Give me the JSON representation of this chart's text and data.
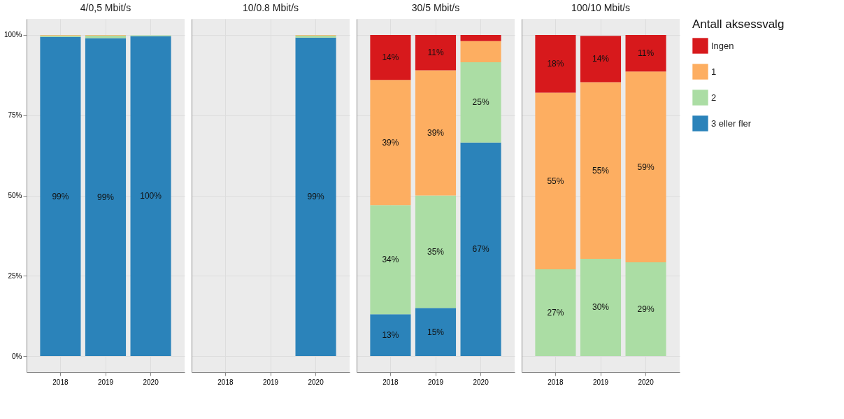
{
  "chart_data": [
    {
      "type": "bar",
      "title": "4/0,5 Mbit/s",
      "stacked": true,
      "legend": "right",
      "legend_title": "Antall aksessvalg",
      "categories": [
        "2018",
        "2019",
        "2020"
      ],
      "ylim": [
        -5,
        105
      ],
      "yticks": [
        {
          "value": 0,
          "label": "0%"
        },
        {
          "value": 25,
          "label": "25%"
        },
        {
          "value": 50,
          "label": "50%"
        },
        {
          "value": 75,
          "label": "75%"
        },
        {
          "value": 100,
          "label": "100%"
        }
      ],
      "grid": true,
      "series": [
        {
          "name": "3 eller fler",
          "color": "#2b83ba",
          "values": [
            99.4,
            99.0,
            99.6
          ],
          "value_labels": [
            "99%",
            "99%",
            "100%"
          ]
        },
        {
          "name": "2",
          "color": "#abdda4",
          "values": [
            0.4,
            0.8,
            0.3
          ]
        },
        {
          "name": "1",
          "color": "#fdae61",
          "values": [
            0.2,
            0.2,
            null
          ]
        },
        {
          "name": "Ingen",
          "color": "#d7191c",
          "values": [
            null,
            null,
            null
          ]
        }
      ]
    },
    {
      "type": "bar",
      "title": "10/0.8 Mbit/s",
      "stacked": true,
      "categories": [
        "2018",
        "2019",
        "2020"
      ],
      "ylim": [
        -5,
        105
      ],
      "yticks": [
        0,
        25,
        50,
        75,
        100
      ],
      "grid": true,
      "tick_labels": "x",
      "series": [
        {
          "color": "#2b83ba",
          "values": [
            null,
            null,
            99.2
          ],
          "value_labels": [
            null,
            null,
            "99%"
          ]
        },
        {
          "color": "#abdda4",
          "values": [
            null,
            null,
            0.6
          ]
        },
        {
          "color": "#fdae61",
          "values": [
            null,
            null,
            0.2
          ]
        },
        {
          "color": "#d7191c",
          "values": [
            null,
            null,
            null
          ]
        }
      ]
    },
    {
      "type": "bar",
      "title": "30/5 Mbit/s",
      "stacked": true,
      "categories": [
        "2018",
        "2019",
        "2020"
      ],
      "ylim": [
        -5,
        105
      ],
      "yticks": [
        0,
        25,
        50,
        75,
        100
      ],
      "grid": true,
      "tick_labels": "x",
      "series": [
        {
          "color": "#2b83ba",
          "values": [
            13,
            15,
            66.5
          ],
          "value_labels": [
            "13%",
            "15%",
            "67%"
          ]
        },
        {
          "color": "#abdda4",
          "values": [
            34,
            35,
            25
          ],
          "value_labels": [
            "34%",
            "35%",
            "25%"
          ]
        },
        {
          "color": "#fdae61",
          "values": [
            39,
            39,
            6.6
          ],
          "value_labels": [
            "39%",
            "39%",
            null
          ]
        },
        {
          "color": "#d7191c",
          "values": [
            14,
            11,
            1.9
          ],
          "value_labels": [
            "14%",
            "11%",
            null
          ]
        }
      ]
    },
    {
      "type": "bar",
      "title": "100/10 Mbit/s",
      "stacked": true,
      "categories": [
        "2018",
        "2019",
        "2020"
      ],
      "ylim": [
        -5,
        105
      ],
      "yticks": [
        0,
        25,
        50,
        75,
        100
      ],
      "grid": true,
      "tick_labels": "x",
      "series": [
        {
          "color": "#2b83ba",
          "values": [
            null,
            null,
            null
          ]
        },
        {
          "color": "#abdda4",
          "values": [
            27,
            30.3,
            29.2
          ],
          "value_labels": [
            "27%",
            "30%",
            "29%"
          ]
        },
        {
          "color": "#fdae61",
          "values": [
            55,
            55.0,
            59.4
          ],
          "value_labels": [
            "55%",
            "55%",
            "59%"
          ]
        },
        {
          "color": "#d7191c",
          "values": [
            18,
            14.4,
            11.4
          ],
          "value_labels": [
            "18%",
            "14%",
            "11%"
          ]
        }
      ]
    }
  ]
}
